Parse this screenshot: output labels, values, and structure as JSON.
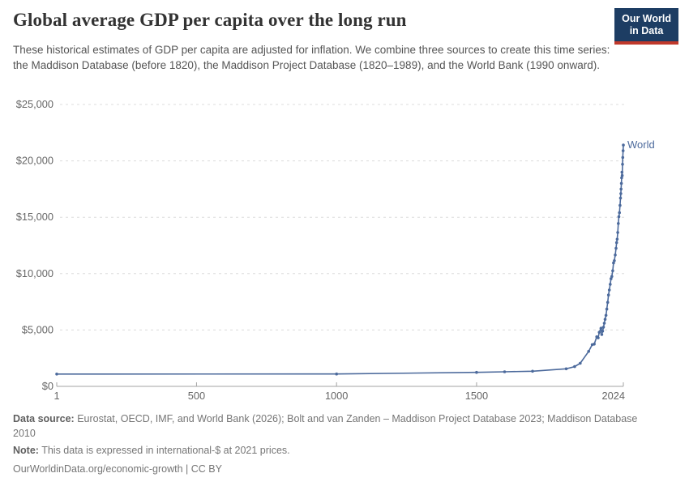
{
  "header": {
    "title": "Global average GDP per capita over the long run",
    "subtitle": "These historical estimates of GDP per capita are adjusted for inflation. We combine three sources to create this time series: the Maddison Database (before 1820), the Maddison Project Database (1820–1989), and the World Bank (1990 onward).",
    "logo": {
      "line1": "Our World",
      "line2": "in Data"
    }
  },
  "chart_data": {
    "type": "line",
    "title": "Global average GDP per capita over the long run",
    "xlabel": "",
    "ylabel": "",
    "xlim": [
      1,
      2024
    ],
    "ylim": [
      0,
      25000
    ],
    "x_ticks": [
      1,
      500,
      1000,
      1500,
      2024
    ],
    "y_ticks": [
      0,
      5000,
      10000,
      15000,
      20000,
      25000
    ],
    "y_tick_prefix": "$",
    "grid": "horizontal-dashed",
    "legend_position": "end-of-line-label",
    "series": [
      {
        "name": "World",
        "points": [
          [
            1,
            1090
          ],
          [
            1000,
            1100
          ],
          [
            1500,
            1240
          ],
          [
            1600,
            1290
          ],
          [
            1700,
            1340
          ],
          [
            1820,
            1560
          ],
          [
            1850,
            1750
          ],
          [
            1870,
            2050
          ],
          [
            1900,
            3100
          ],
          [
            1913,
            3700
          ],
          [
            1920,
            3750
          ],
          [
            1929,
            4400
          ],
          [
            1934,
            4300
          ],
          [
            1938,
            4800
          ],
          [
            1944,
            5150
          ],
          [
            1947,
            4600
          ],
          [
            1950,
            4900
          ],
          [
            1953,
            5250
          ],
          [
            1956,
            5600
          ],
          [
            1959,
            5950
          ],
          [
            1962,
            6300
          ],
          [
            1965,
            6850
          ],
          [
            1968,
            7450
          ],
          [
            1971,
            8100
          ],
          [
            1974,
            8550
          ],
          [
            1977,
            9050
          ],
          [
            1980,
            9550
          ],
          [
            1983,
            9750
          ],
          [
            1986,
            10250
          ],
          [
            1989,
            10950
          ],
          [
            1992,
            11150
          ],
          [
            1995,
            11650
          ],
          [
            1998,
            12250
          ],
          [
            2000,
            12750
          ],
          [
            2002,
            13050
          ],
          [
            2004,
            13650
          ],
          [
            2006,
            14450
          ],
          [
            2008,
            15050
          ],
          [
            2010,
            15400
          ],
          [
            2012,
            16050
          ],
          [
            2014,
            16700
          ],
          [
            2015,
            17100
          ],
          [
            2016,
            17500
          ],
          [
            2017,
            18000
          ],
          [
            2018,
            18500
          ],
          [
            2019,
            19000
          ],
          [
            2020,
            18700
          ],
          [
            2021,
            19700
          ],
          [
            2022,
            20300
          ],
          [
            2023,
            20900
          ],
          [
            2024,
            21400
          ]
        ]
      }
    ]
  },
  "footer": {
    "data_source_label": "Data source:",
    "data_source": "Eurostat, OECD, IMF, and World Bank (2026); Bolt and van Zanden – Maddison Project Database 2023; Maddison Database 2010",
    "note_label": "Note:",
    "note": "This data is expressed in international-$ at 2021 prices.",
    "link": "OurWorldinData.org/economic-growth | CC BY"
  },
  "colors": {
    "series_line": "#4c6a9c",
    "grid_line": "#dcdcdc",
    "axis_line": "#a3a3a3",
    "axis_text": "#666666",
    "logo_bg": "#1d3d63",
    "logo_accent": "#c0392b"
  }
}
